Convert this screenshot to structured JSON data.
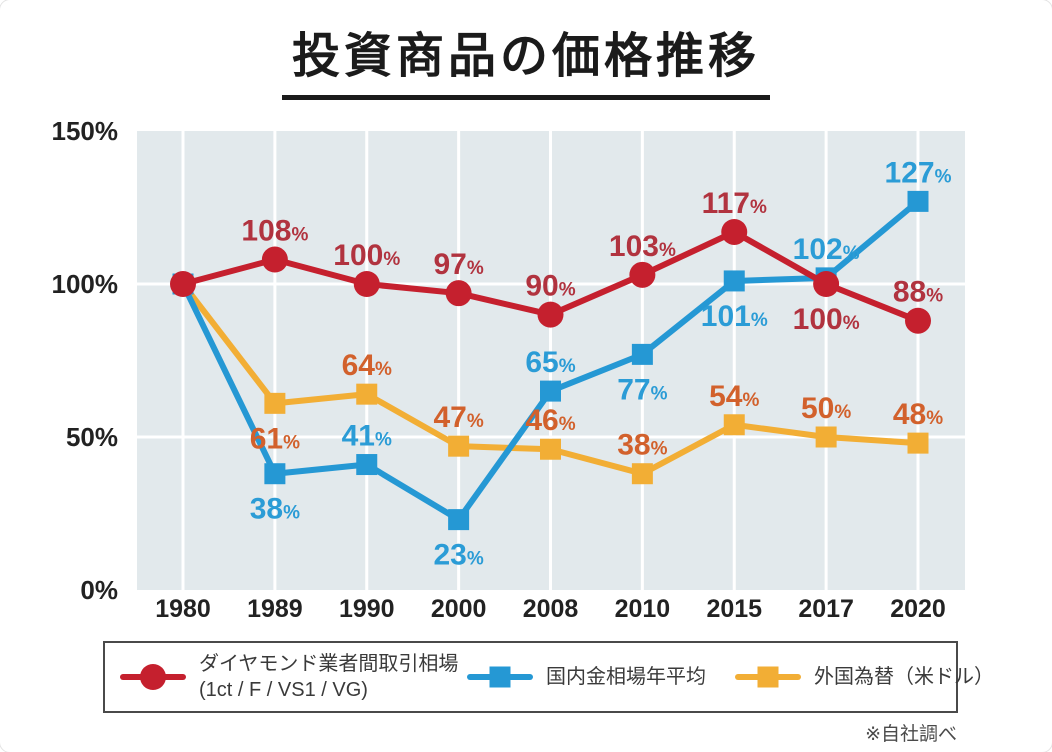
{
  "title": "投資商品の価格推移",
  "note": "※自社調べ",
  "colors": {
    "plot_bg": "#e2e9ec",
    "grid": "#ffffff",
    "axis_text": "#222222",
    "red_line": "#c5202e",
    "red_label": "#b1333f",
    "blue_line": "#2598d4",
    "blue_label": "#2b9cd6",
    "yellow_line": "#f2ae35",
    "orange_label": "#d2612c"
  },
  "chart_data": {
    "type": "line",
    "title": "投資商品の価格推移",
    "categories": [
      "1980",
      "1989",
      "1990",
      "2000",
      "2008",
      "2010",
      "2015",
      "2017",
      "2020"
    ],
    "ylim": [
      0,
      150
    ],
    "y_ticks": [
      {
        "label": "150%",
        "value": 150
      },
      {
        "label": "100%",
        "value": 100
      },
      {
        "label": "50%",
        "value": 50
      },
      {
        "label": "0%",
        "value": 0
      }
    ],
    "grid": "on",
    "legend_position": "bottom",
    "unit_suffix": "%",
    "series": [
      {
        "name": "ダイヤモンド業者間取引相場（1ct / F / VS1 / VG）",
        "marker": "circle",
        "color": "#c5202e",
        "label_color": "#b1333f",
        "values": [
          100,
          108,
          100,
          97,
          90,
          103,
          117,
          100,
          88
        ],
        "label_pos": [
          "none",
          "above",
          "above",
          "above",
          "above",
          "above",
          "above",
          "below",
          "above"
        ]
      },
      {
        "name": "国内金相場年平均",
        "marker": "square",
        "color": "#2598d4",
        "label_color": "#2b9cd6",
        "values": [
          100,
          38,
          41,
          23,
          65,
          77,
          101,
          102,
          127
        ],
        "label_pos": [
          "none",
          "below",
          "above",
          "below",
          "above",
          "below",
          "below",
          "above",
          "above"
        ]
      },
      {
        "name": "外国為替（米ドル）",
        "marker": "square",
        "color": "#f2ae35",
        "label_color": "#d2612c",
        "values": [
          100,
          61,
          64,
          47,
          46,
          38,
          54,
          50,
          48
        ],
        "label_pos": [
          "none",
          "below",
          "above",
          "above",
          "above",
          "above",
          "above",
          "above",
          "above"
        ]
      }
    ]
  },
  "legend": {
    "items": [
      {
        "label_line1": "ダイヤモンド業者間取引相場",
        "label_line2": "(1ct / F / VS1 / VG)",
        "marker": "circle",
        "color": "#c5202e"
      },
      {
        "label_line1": "国内金相場年平均",
        "label_line2": "",
        "marker": "square",
        "color": "#2598d4"
      },
      {
        "label_line1": "外国為替（米ドル）",
        "label_line2": "",
        "marker": "square",
        "color": "#f2ae35"
      }
    ]
  }
}
